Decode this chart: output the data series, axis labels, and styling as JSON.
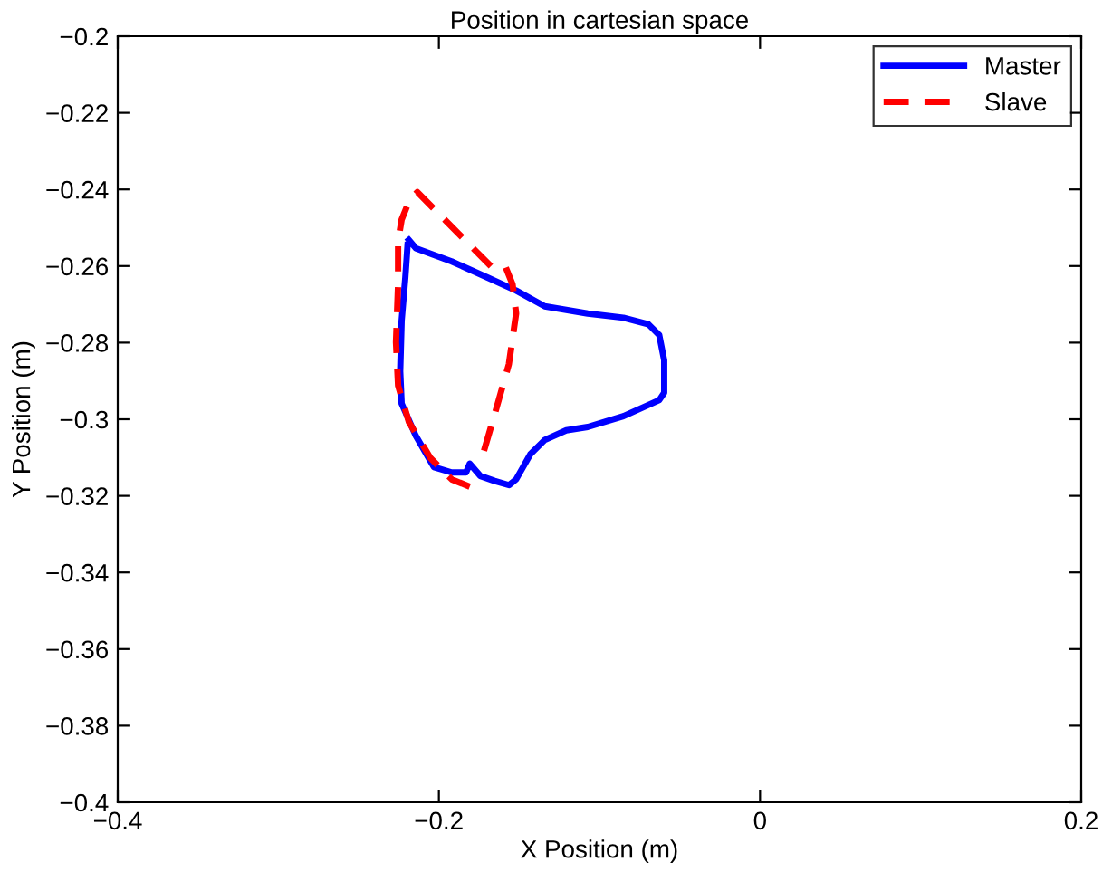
{
  "chart_data": {
    "type": "line",
    "title": "Position in cartesian space",
    "xlabel": "X Position (m)",
    "ylabel": "Y Position (m)",
    "xlim": [
      -0.4,
      0.2
    ],
    "xticks": [
      {
        "value": -0.4,
        "label": "−0.4"
      },
      {
        "value": -0.2,
        "label": "−0.2"
      },
      0,
      0.2
    ],
    "ylim": [
      -0.4,
      -0.2
    ],
    "yticks": [
      {
        "value": -0.4,
        "label": "−0.4"
      },
      {
        "value": -0.38,
        "label": "−0.38"
      },
      {
        "value": -0.36,
        "label": "−0.36"
      },
      {
        "value": -0.34,
        "label": "−0.34"
      },
      {
        "value": -0.32,
        "label": "−0.32"
      },
      {
        "value": -0.3,
        "label": "−0.3"
      },
      {
        "value": -0.28,
        "label": "−0.28"
      },
      {
        "value": -0.26,
        "label": "−0.26"
      },
      {
        "value": -0.24,
        "label": "−0.24"
      },
      {
        "value": -0.22,
        "label": "−0.22"
      },
      {
        "value": -0.2,
        "label": "−0.2"
      }
    ],
    "grid": false,
    "legend": "top right",
    "marker": "none",
    "series": [
      {
        "name": "Master",
        "color": "#0000ff",
        "line_style": "solid",
        "x": [
          -0.2187,
          -0.2143,
          -0.192,
          -0.1697,
          -0.1519,
          -0.1341,
          -0.1073,
          -0.0851,
          -0.0695,
          -0.0628,
          -0.0597,
          -0.0597,
          -0.0628,
          -0.0851,
          -0.1073,
          -0.1207,
          -0.1341,
          -0.143,
          -0.1519,
          -0.1563,
          -0.1653,
          -0.1742,
          -0.1808,
          -0.1831,
          -0.192,
          -0.2031,
          -0.2143,
          -0.2232,
          -0.2241,
          -0.2232,
          -0.2209,
          -0.2195
        ],
        "values": [
          -0.2532,
          -0.2554,
          -0.2588,
          -0.263,
          -0.2664,
          -0.2705,
          -0.2724,
          -0.2735,
          -0.2752,
          -0.278,
          -0.2846,
          -0.2931,
          -0.295,
          -0.2992,
          -0.302,
          -0.3029,
          -0.3054,
          -0.3091,
          -0.3157,
          -0.3172,
          -0.3161,
          -0.3148,
          -0.3116,
          -0.3139,
          -0.3139,
          -0.3125,
          -0.3044,
          -0.2959,
          -0.2875,
          -0.2743,
          -0.263,
          -0.2545
        ]
      },
      {
        "name": "Slave",
        "color": "#ff0000",
        "line_style": "dashed",
        "x": [
          -0.1719,
          -0.1653,
          -0.1564,
          -0.1519,
          -0.1541,
          -0.1586,
          -0.1675,
          -0.1831,
          -0.2009,
          -0.2134,
          -0.2187,
          -0.2232,
          -0.2254,
          -0.2254,
          -0.2267,
          -0.2254,
          -0.2187,
          -0.2053,
          -0.192,
          -0.1808
        ],
        "values": [
          -0.3082,
          -0.2988,
          -0.2856,
          -0.2724,
          -0.2648,
          -0.2601,
          -0.2601,
          -0.2535,
          -0.246,
          -0.2407,
          -0.2432,
          -0.2479,
          -0.2535,
          -0.2648,
          -0.2799,
          -0.2912,
          -0.3007,
          -0.3101,
          -0.3157,
          -0.3176
        ]
      }
    ]
  }
}
